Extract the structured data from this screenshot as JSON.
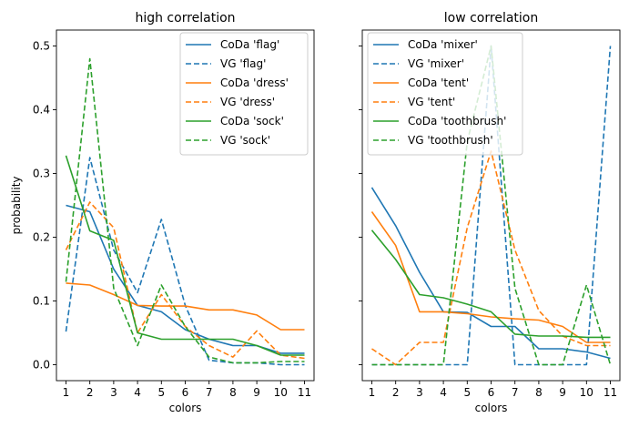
{
  "chart_data": [
    {
      "type": "line",
      "title": "high correlation",
      "xlabel": "colors",
      "ylabel": "probability",
      "x": [
        1,
        2,
        3,
        4,
        5,
        6,
        7,
        8,
        9,
        10,
        11
      ],
      "xticks": [
        "1",
        "2",
        "3",
        "4",
        "5",
        "6",
        "7",
        "8",
        "9",
        "10",
        "11"
      ],
      "ylim": [
        -0.025,
        0.525
      ],
      "yticks": [
        "0.0",
        "0.1",
        "0.2",
        "0.3",
        "0.4",
        "0.5"
      ],
      "legend_position": "top-right",
      "series": [
        {
          "name": "CoDa 'flag'",
          "color": "#1f77b4",
          "style": "solid",
          "values": [
            0.25,
            0.24,
            0.15,
            0.093,
            0.083,
            0.055,
            0.04,
            0.03,
            0.03,
            0.018,
            0.018
          ]
        },
        {
          "name": "VG 'flag'",
          "color": "#1f77b4",
          "style": "dashed",
          "values": [
            0.052,
            0.325,
            0.18,
            0.113,
            0.228,
            0.093,
            0.007,
            0.003,
            0.003,
            0.0,
            0.0
          ]
        },
        {
          "name": "CoDa 'dress'",
          "color": "#ff7f0e",
          "style": "solid",
          "values": [
            0.128,
            0.125,
            0.11,
            0.093,
            0.092,
            0.092,
            0.086,
            0.086,
            0.078,
            0.055,
            0.055
          ]
        },
        {
          "name": "VG 'dress'",
          "color": "#ff7f0e",
          "style": "dashed",
          "values": [
            0.18,
            0.255,
            0.215,
            0.05,
            0.11,
            0.06,
            0.03,
            0.012,
            0.053,
            0.015,
            0.01
          ]
        },
        {
          "name": "CoDa 'sock'",
          "color": "#2ca02c",
          "style": "solid",
          "values": [
            0.328,
            0.21,
            0.195,
            0.05,
            0.04,
            0.04,
            0.04,
            0.04,
            0.03,
            0.015,
            0.015
          ]
        },
        {
          "name": "VG 'sock'",
          "color": "#2ca02c",
          "style": "dashed",
          "values": [
            0.13,
            0.48,
            0.12,
            0.03,
            0.125,
            0.06,
            0.012,
            0.003,
            0.003,
            0.005,
            0.005
          ]
        }
      ]
    },
    {
      "type": "line",
      "title": "low correlation",
      "xlabel": "colors",
      "ylabel": "",
      "x": [
        1,
        2,
        3,
        4,
        5,
        6,
        7,
        8,
        9,
        10,
        11
      ],
      "xticks": [
        "1",
        "2",
        "3",
        "4",
        "5",
        "6",
        "7",
        "8",
        "9",
        "10",
        "11"
      ],
      "ylim": [
        -0.025,
        0.525
      ],
      "shared_y": true,
      "legend_position": "top-left",
      "series": [
        {
          "name": "CoDa 'mixer'",
          "color": "#1f77b4",
          "style": "solid",
          "values": [
            0.278,
            0.218,
            0.145,
            0.083,
            0.082,
            0.06,
            0.06,
            0.025,
            0.025,
            0.02,
            0.01
          ]
        },
        {
          "name": "VG 'mixer'",
          "color": "#1f77b4",
          "style": "dashed",
          "values": [
            0.0,
            0.0,
            0.0,
            0.0,
            0.0,
            0.5,
            0.0,
            0.0,
            0.0,
            0.0,
            0.5
          ]
        },
        {
          "name": "CoDa 'tent'",
          "color": "#ff7f0e",
          "style": "solid",
          "values": [
            0.24,
            0.187,
            0.083,
            0.083,
            0.08,
            0.075,
            0.072,
            0.07,
            0.06,
            0.035,
            0.035
          ]
        },
        {
          "name": "VG 'tent'",
          "color": "#ff7f0e",
          "style": "dashed",
          "values": [
            0.025,
            0.0,
            0.035,
            0.035,
            0.215,
            0.335,
            0.18,
            0.085,
            0.045,
            0.03,
            0.03
          ]
        },
        {
          "name": "CoDa 'toothbrush'",
          "color": "#2ca02c",
          "style": "solid",
          "values": [
            0.211,
            0.165,
            0.11,
            0.105,
            0.095,
            0.083,
            0.048,
            0.045,
            0.045,
            0.043,
            0.043
          ]
        },
        {
          "name": "VG 'toothbrush'",
          "color": "#2ca02c",
          "style": "dashed",
          "values": [
            0.0,
            0.0,
            0.0,
            0.0,
            0.35,
            0.5,
            0.12,
            0.0,
            0.0,
            0.125,
            0.0
          ]
        }
      ]
    }
  ]
}
